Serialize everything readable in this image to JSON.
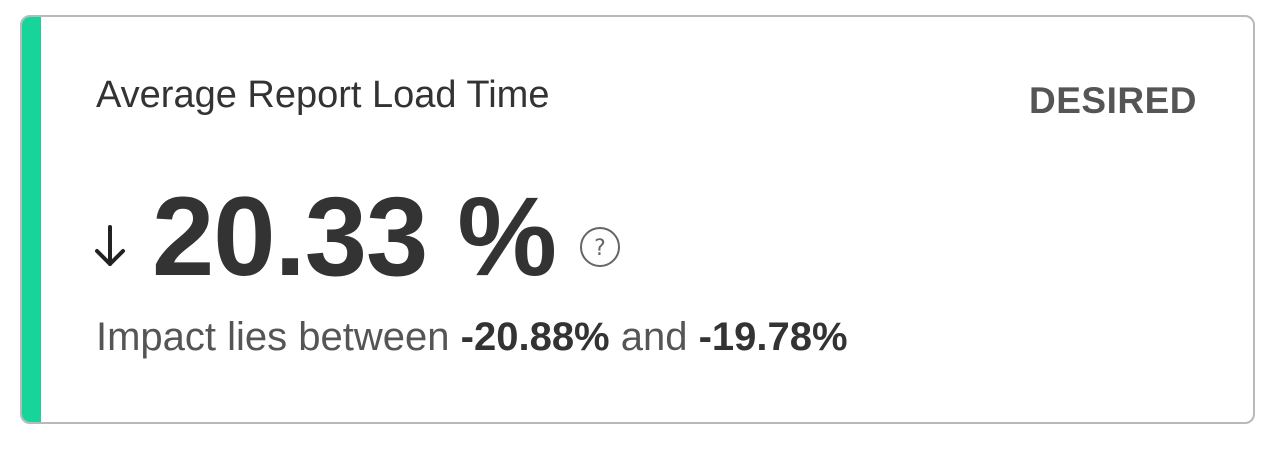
{
  "card": {
    "title": "Average Report Load Time",
    "status": "DESIRED",
    "direction_icon": "arrow-down-icon",
    "metric_value": "20.33 %",
    "help_icon": "question-circle-icon",
    "impact": {
      "prefix": "Impact lies between ",
      "lower": "-20.88%",
      "connector": " and ",
      "upper": "-19.78%"
    }
  },
  "colors": {
    "accent": "#17d49a",
    "border": "#b9b9b9",
    "text_primary": "#333333",
    "text_secondary": "#555555"
  }
}
